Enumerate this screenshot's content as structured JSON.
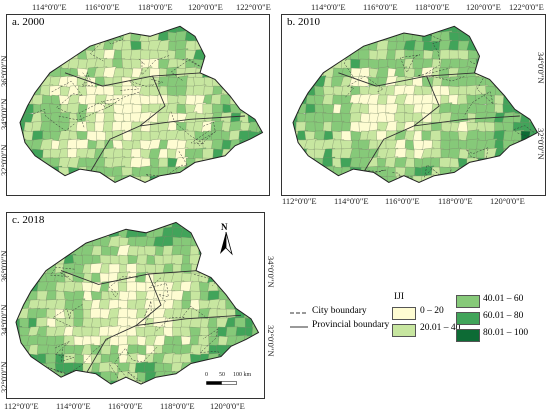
{
  "panels": [
    {
      "title": "a. 2000",
      "top_ticks": [
        "114°0'0\"E",
        "116°0'0\"E",
        "118°0'0\"E",
        "120°0'0\"E",
        "122°0'0\"E"
      ],
      "left_ticks": [
        "36°0'0\"N",
        "34°0'0\"N",
        "32°0'0\"N"
      ]
    },
    {
      "title": "b. 2010",
      "top_ticks": [
        "114°0'0\"E",
        "116°0'0\"E",
        "118°0'0\"E",
        "120°0'0\"E",
        "122°0'0\"E"
      ],
      "bottom_ticks": [
        "112°0'0\"E",
        "114°0'0\"E",
        "116°0'0\"E",
        "118°0'0\"E",
        "120°0'0\"E"
      ],
      "right_ticks": [
        "34°0'0\"N",
        "32°0'0\"N"
      ]
    },
    {
      "title": "c. 2018",
      "left_ticks": [
        "36°0'0\"N",
        "34°0'0\"N",
        "32°0'0\"N"
      ],
      "right_ticks": [
        "34°0'0\"N",
        "32°0'0\"N"
      ],
      "bottom_ticks": [
        "112°0'0\"E",
        "114°0'0\"E",
        "116°0'0\"E",
        "118°0'0\"E",
        "120°0'0\"E"
      ]
    }
  ],
  "north_arrow": "N",
  "scale_bar": {
    "labels": [
      "0",
      "50",
      "100 km"
    ]
  },
  "legend": {
    "boundaries": [
      {
        "label": "City boundary",
        "style": "dashed"
      },
      {
        "label": "Provincial boundary",
        "style": "solid"
      }
    ],
    "title": "IJI",
    "classes": [
      {
        "label": "0 – 20",
        "color": "#fefcd2"
      },
      {
        "label": "20.01 – 40",
        "color": "#c7e6a0"
      },
      {
        "label": "40.01 – 60",
        "color": "#86c979"
      },
      {
        "label": "60.01 – 80",
        "color": "#41a45a"
      },
      {
        "label": "80.01 – 100",
        "color": "#0d6b35"
      }
    ]
  }
}
